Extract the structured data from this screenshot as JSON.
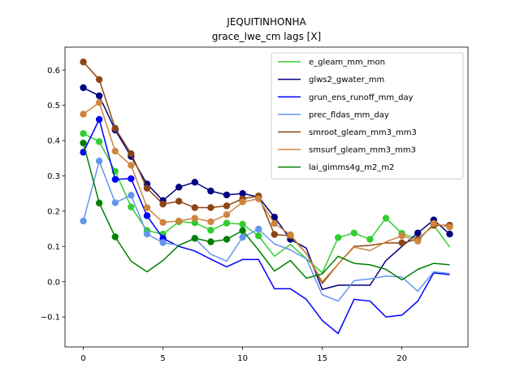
{
  "chart_data": {
    "type": "line",
    "title": "JEQUITINHONHA",
    "subtitle": "grace_lwe_cm lags [X]",
    "xlabel": "",
    "ylabel": "",
    "xlim": [
      -1.15,
      24.15
    ],
    "ylim": [
      -0.185,
      0.665
    ],
    "xticks": [
      0,
      5,
      10,
      15,
      20
    ],
    "yticks": [
      -0.1,
      0.0,
      0.1,
      0.2,
      0.3,
      0.4,
      0.5,
      0.6
    ],
    "ytick_labels": [
      "−0.1",
      "0.0",
      "0.1",
      "0.2",
      "0.3",
      "0.4",
      "0.5",
      "0.6"
    ],
    "grid": false,
    "legend_position": "upper-right",
    "x": [
      0,
      1,
      2,
      3,
      4,
      5,
      6,
      7,
      8,
      9,
      10,
      11,
      12,
      13,
      14,
      15,
      16,
      17,
      18,
      19,
      20,
      21,
      22,
      23
    ],
    "series": [
      {
        "name": "e_gleam_mm_mon",
        "color": "#32cd32",
        "values": [
          0.42,
          0.397,
          0.313,
          0.212,
          0.145,
          0.135,
          0.17,
          0.167,
          0.146,
          0.166,
          0.163,
          0.13,
          0.072,
          0.106,
          0.065,
          0.025,
          0.125,
          0.138,
          0.12,
          0.18,
          0.137,
          0.12,
          0.16,
          0.098
        ],
        "markers": [
          true,
          true,
          true,
          true,
          true,
          true,
          true,
          true,
          true,
          true,
          true,
          true,
          false,
          false,
          false,
          false,
          true,
          true,
          true,
          true,
          true,
          true,
          true,
          false
        ]
      },
      {
        "name": "glws2_gwater_mm",
        "color": "#000080",
        "values": [
          0.55,
          0.527,
          0.43,
          0.355,
          0.277,
          0.23,
          0.268,
          0.282,
          0.257,
          0.246,
          0.25,
          0.24,
          0.183,
          0.12,
          0.095,
          -0.022,
          -0.01,
          -0.01,
          -0.01,
          0.06,
          0.1,
          0.138,
          0.175,
          0.135
        ],
        "markers": [
          true,
          true,
          true,
          true,
          true,
          true,
          true,
          true,
          true,
          true,
          true,
          true,
          true,
          true,
          false,
          false,
          false,
          false,
          false,
          false,
          false,
          true,
          true,
          true
        ]
      },
      {
        "name": "grun_ens_runoff_mm_day",
        "color": "#0000ff",
        "values": [
          0.367,
          0.46,
          0.29,
          0.292,
          0.187,
          0.123,
          0.1,
          0.087,
          0.064,
          0.042,
          0.063,
          0.063,
          -0.02,
          -0.02,
          -0.05,
          -0.11,
          -0.147,
          -0.05,
          -0.055,
          -0.1,
          -0.095,
          -0.055,
          0.025,
          0.02
        ],
        "markers": [
          true,
          true,
          true,
          true,
          true,
          true,
          false,
          false,
          false,
          false,
          false,
          false,
          false,
          false,
          false,
          false,
          false,
          false,
          false,
          false,
          false,
          false,
          false,
          false
        ]
      },
      {
        "name": "prec_fldas_mm_day",
        "color": "#6495ed",
        "values": [
          0.172,
          0.342,
          0.224,
          0.245,
          0.135,
          0.111,
          0.103,
          0.123,
          0.078,
          0.058,
          0.126,
          0.149,
          0.107,
          0.09,
          0.065,
          -0.037,
          -0.055,
          0.003,
          0.008,
          0.016,
          0.013,
          -0.027,
          0.028,
          0.023
        ],
        "markers": [
          true,
          true,
          true,
          true,
          true,
          true,
          false,
          true,
          false,
          false,
          true,
          true,
          false,
          false,
          false,
          false,
          false,
          false,
          false,
          false,
          false,
          false,
          false,
          false
        ]
      },
      {
        "name": "smroot_gleam_mm3_mm3",
        "color": "#8b4513",
        "values": [
          0.623,
          0.573,
          0.435,
          0.363,
          0.265,
          0.22,
          0.228,
          0.21,
          0.21,
          0.215,
          0.235,
          0.243,
          0.134,
          0.13,
          0.08,
          -0.005,
          0.05,
          0.1,
          0.103,
          0.11,
          0.11,
          0.12,
          0.16,
          0.16
        ],
        "markers": [
          true,
          true,
          true,
          true,
          true,
          true,
          true,
          true,
          true,
          true,
          true,
          true,
          true,
          true,
          false,
          false,
          false,
          false,
          false,
          false,
          true,
          true,
          true,
          true
        ]
      },
      {
        "name": "smsurf_gleam_mm3_mm3",
        "color": "#cd853f",
        "values": [
          0.475,
          0.508,
          0.37,
          0.33,
          0.21,
          0.168,
          0.172,
          0.18,
          0.17,
          0.19,
          0.226,
          0.235,
          0.165,
          0.133,
          0.08,
          0.0,
          0.05,
          0.098,
          0.088,
          0.113,
          0.13,
          0.115,
          0.165,
          0.155
        ],
        "markers": [
          true,
          true,
          true,
          true,
          true,
          true,
          true,
          true,
          true,
          true,
          true,
          true,
          true,
          true,
          false,
          false,
          false,
          false,
          false,
          false,
          true,
          true,
          true,
          true
        ]
      },
      {
        "name": "lai_gimms4g_m2_m2",
        "color": "#008000",
        "values": [
          0.393,
          0.223,
          0.127,
          0.058,
          0.028,
          0.06,
          0.103,
          0.123,
          0.113,
          0.12,
          0.145,
          0.09,
          0.03,
          0.06,
          0.01,
          0.022,
          0.072,
          0.052,
          0.048,
          0.035,
          0.005,
          0.035,
          0.052,
          0.048
        ],
        "markers": [
          true,
          true,
          true,
          false,
          false,
          false,
          false,
          true,
          true,
          true,
          true,
          false,
          false,
          false,
          false,
          false,
          false,
          false,
          false,
          false,
          false,
          false,
          false,
          false
        ]
      }
    ]
  }
}
